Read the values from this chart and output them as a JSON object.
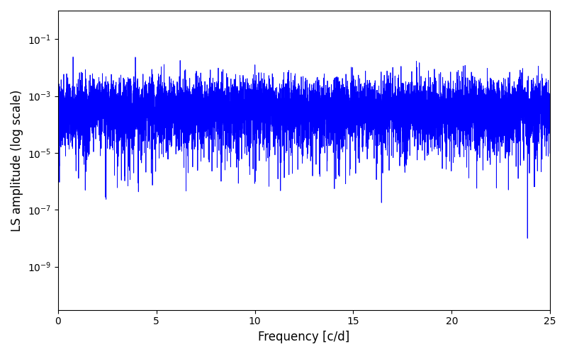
{
  "xlabel": "Frequency [c/d]",
  "ylabel": "LS amplitude (log scale)",
  "title": "",
  "line_color": "#0000ff",
  "line_width": 0.6,
  "xlim": [
    0,
    25
  ],
  "ylim": [
    3e-11,
    1.0
  ],
  "freq_max": 25.0,
  "num_points": 8000,
  "background_color": "#ffffff",
  "figsize": [
    8.0,
    5.0
  ],
  "dpi": 100
}
